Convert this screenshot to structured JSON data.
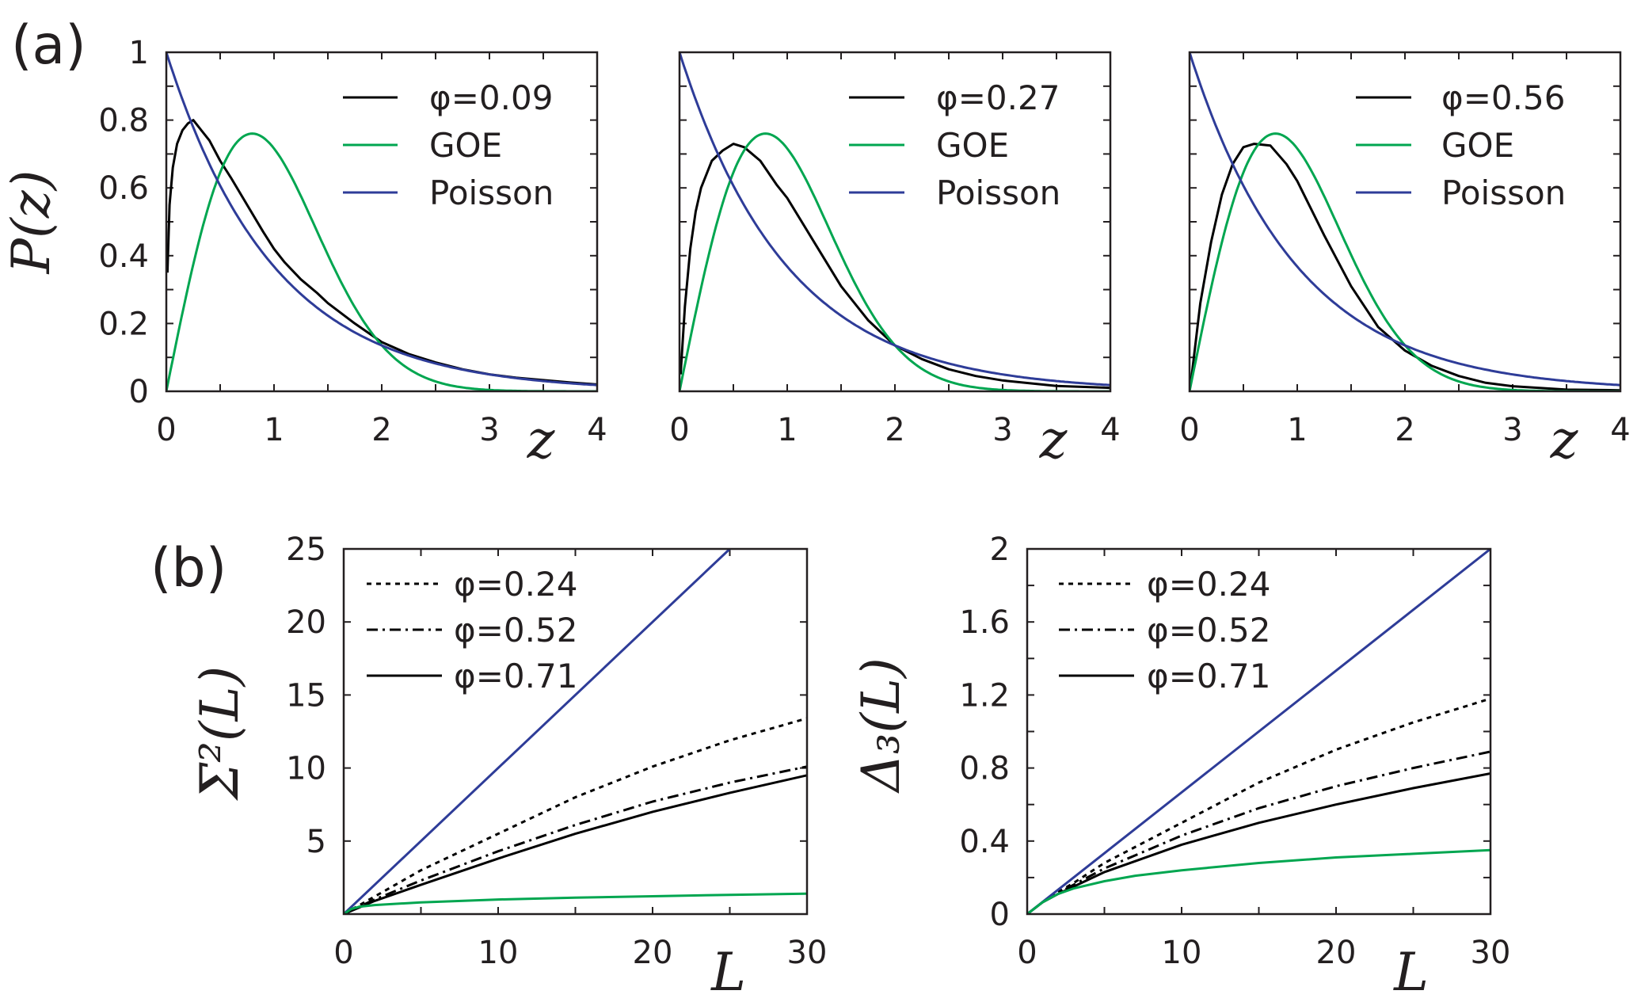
{
  "figure": {
    "panel_labels": {
      "a": "(a)",
      "b": "(b)"
    }
  },
  "colors": {
    "data": "#000000",
    "goe": "#00a650",
    "poisson": "#2e3c98",
    "axis": "#231f20"
  },
  "chart_data": [
    {
      "id": "a1",
      "type": "line",
      "title": "",
      "xlabel": "z",
      "ylabel": "P(z)",
      "xlim": [
        0,
        4
      ],
      "ylim": [
        0,
        1
      ],
      "xticks": [
        0,
        1,
        2,
        3,
        4
      ],
      "xtick_labels": [
        "0",
        "1",
        "2",
        "3",
        "4"
      ],
      "xminor": [
        0.5,
        1.5,
        2.5,
        3.5
      ],
      "yticks": [
        0,
        0.2,
        0.4,
        0.6,
        0.8,
        1
      ],
      "ytick_labels": [
        "0",
        "0.2",
        "0.4",
        "0.6",
        "0.8",
        "1"
      ],
      "yminor": [
        0.1,
        0.3,
        0.5,
        0.7,
        0.9
      ],
      "show_ytick_labels": true,
      "legend_position": "top-right",
      "series": [
        {
          "name": "φ=0.09",
          "style": "solid",
          "color_key": "data",
          "x": [
            0.01,
            0.03,
            0.06,
            0.1,
            0.15,
            0.2,
            0.25,
            0.3,
            0.4,
            0.5,
            0.6,
            0.75,
            0.9,
            1.0,
            1.1,
            1.25,
            1.4,
            1.5,
            1.75,
            2.0,
            2.25,
            2.5,
            2.75,
            3.0,
            3.25,
            3.5,
            3.75,
            4.0
          ],
          "y": [
            0.35,
            0.55,
            0.66,
            0.73,
            0.77,
            0.79,
            0.8,
            0.78,
            0.74,
            0.68,
            0.63,
            0.55,
            0.47,
            0.42,
            0.38,
            0.33,
            0.29,
            0.26,
            0.2,
            0.145,
            0.11,
            0.085,
            0.065,
            0.05,
            0.04,
            0.033,
            0.026,
            0.02
          ]
        },
        {
          "name": "GOE",
          "style": "solid",
          "color_key": "goe",
          "formula": "(pi/2) z exp(-pi z^2/4)"
        },
        {
          "name": "Poisson",
          "style": "solid",
          "color_key": "poisson",
          "formula": "exp(-z)"
        }
      ]
    },
    {
      "id": "a2",
      "type": "line",
      "title": "",
      "xlabel": "z",
      "ylabel": "",
      "xlim": [
        0,
        4
      ],
      "ylim": [
        0,
        1
      ],
      "xticks": [
        0,
        1,
        2,
        3,
        4
      ],
      "xtick_labels": [
        "0",
        "1",
        "2",
        "3",
        "4"
      ],
      "xminor": [
        0.5,
        1.5,
        2.5,
        3.5
      ],
      "yticks": [
        0,
        0.2,
        0.4,
        0.6,
        0.8,
        1
      ],
      "ytick_labels": [],
      "yminor": [
        0.1,
        0.3,
        0.5,
        0.7,
        0.9
      ],
      "show_ytick_labels": false,
      "legend_position": "top-right",
      "series": [
        {
          "name": "φ=0.27",
          "style": "solid",
          "color_key": "data",
          "x": [
            0.01,
            0.05,
            0.1,
            0.15,
            0.2,
            0.3,
            0.4,
            0.5,
            0.6,
            0.75,
            0.9,
            1.0,
            1.25,
            1.5,
            1.75,
            2.0,
            2.25,
            2.5,
            2.75,
            3.0,
            3.5,
            4.0
          ],
          "y": [
            0.05,
            0.25,
            0.42,
            0.53,
            0.6,
            0.68,
            0.71,
            0.73,
            0.72,
            0.68,
            0.61,
            0.57,
            0.44,
            0.31,
            0.21,
            0.135,
            0.095,
            0.065,
            0.045,
            0.032,
            0.016,
            0.01
          ]
        },
        {
          "name": "GOE",
          "style": "solid",
          "color_key": "goe",
          "formula": "(pi/2) z exp(-pi z^2/4)"
        },
        {
          "name": "Poisson",
          "style": "solid",
          "color_key": "poisson",
          "formula": "exp(-z)"
        }
      ]
    },
    {
      "id": "a3",
      "type": "line",
      "title": "",
      "xlabel": "z",
      "ylabel": "",
      "xlim": [
        0,
        4
      ],
      "ylim": [
        0,
        1
      ],
      "xticks": [
        0,
        1,
        2,
        3,
        4
      ],
      "xtick_labels": [
        "0",
        "1",
        "2",
        "3",
        "4"
      ],
      "xminor": [
        0.5,
        1.5,
        2.5,
        3.5
      ],
      "yticks": [
        0,
        0.2,
        0.4,
        0.6,
        0.8,
        1
      ],
      "ytick_labels": [],
      "yminor": [
        0.1,
        0.3,
        0.5,
        0.7,
        0.9
      ],
      "show_ytick_labels": false,
      "legend_position": "top-right",
      "series": [
        {
          "name": "φ=0.56",
          "style": "solid",
          "color_key": "data",
          "x": [
            0.01,
            0.1,
            0.2,
            0.3,
            0.4,
            0.5,
            0.6,
            0.75,
            0.9,
            1.0,
            1.25,
            1.5,
            1.75,
            2.0,
            2.25,
            2.5,
            2.75,
            3.0,
            3.5,
            4.0
          ],
          "y": [
            0.02,
            0.26,
            0.44,
            0.58,
            0.67,
            0.72,
            0.73,
            0.725,
            0.67,
            0.62,
            0.46,
            0.31,
            0.19,
            0.12,
            0.075,
            0.045,
            0.025,
            0.015,
            0.005,
            0.003
          ]
        },
        {
          "name": "GOE",
          "style": "solid",
          "color_key": "goe",
          "formula": "(pi/2) z exp(-pi z^2/4)"
        },
        {
          "name": "Poisson",
          "style": "solid",
          "color_key": "poisson",
          "formula": "exp(-z)"
        }
      ]
    },
    {
      "id": "b1",
      "type": "line",
      "title": "",
      "xlabel": "L",
      "ylabel": "Σ²(L)",
      "xlim": [
        0,
        30
      ],
      "ylim": [
        0,
        25
      ],
      "xticks": [
        0,
        10,
        20,
        30
      ],
      "xtick_labels": [
        "0",
        "10",
        "20",
        "30"
      ],
      "xminor": [
        5,
        15,
        25
      ],
      "yticks": [
        5,
        10,
        15,
        20,
        25
      ],
      "ytick_labels": [
        "5",
        "10",
        "15",
        "20",
        "25"
      ],
      "yminor": [],
      "show_ytick_labels": true,
      "legend_position": "top-left",
      "series": [
        {
          "name": "φ=0.24",
          "style": "dotted",
          "color_key": "data",
          "x": [
            0,
            1,
            2,
            5,
            10,
            15,
            20,
            25,
            30
          ],
          "y": [
            0,
            0.6,
            1.2,
            3.0,
            5.5,
            8.0,
            10.1,
            11.9,
            13.4
          ]
        },
        {
          "name": "φ=0.52",
          "style": "dashdot",
          "color_key": "data",
          "x": [
            0,
            1,
            2,
            5,
            10,
            15,
            20,
            25,
            30
          ],
          "y": [
            0,
            0.5,
            1.0,
            2.3,
            4.3,
            6.1,
            7.7,
            9.0,
            10.1
          ]
        },
        {
          "name": "φ=0.71",
          "style": "solid",
          "color_key": "data",
          "x": [
            0,
            1,
            2,
            5,
            10,
            15,
            20,
            25,
            30
          ],
          "y": [
            0,
            0.45,
            0.9,
            2.0,
            3.8,
            5.5,
            7.0,
            8.3,
            9.5
          ]
        },
        {
          "name": "Poisson",
          "style": "solid",
          "color_key": "poisson",
          "legend": false,
          "x": [
            0,
            25
          ],
          "y": [
            0,
            25
          ]
        },
        {
          "name": "GOE",
          "style": "solid",
          "color_key": "goe",
          "legend": false,
          "x": [
            0,
            0.5,
            1,
            2,
            5,
            10,
            15,
            20,
            25,
            30
          ],
          "y": [
            0,
            0.35,
            0.5,
            0.62,
            0.8,
            1.0,
            1.12,
            1.22,
            1.32,
            1.4
          ]
        }
      ]
    },
    {
      "id": "b2",
      "type": "line",
      "title": "",
      "xlabel": "L",
      "ylabel": "Δ₃(L)",
      "xlim": [
        0,
        30
      ],
      "ylim": [
        0,
        2
      ],
      "xticks": [
        0,
        10,
        20,
        30
      ],
      "xtick_labels": [
        "0",
        "10",
        "20",
        "30"
      ],
      "xminor": [
        5,
        15,
        25
      ],
      "yticks": [
        0,
        0.4,
        0.8,
        1.2,
        1.6,
        2
      ],
      "ytick_labels": [
        "0",
        "0.4",
        "0.8",
        "1.2",
        "1.6",
        "2"
      ],
      "yminor": [
        0.2,
        0.6,
        1.0,
        1.4,
        1.8
      ],
      "show_ytick_labels": true,
      "legend_position": "top-left",
      "series": [
        {
          "name": "φ=0.24",
          "style": "dotted",
          "color_key": "data",
          "x": [
            0,
            1,
            2,
            3,
            5,
            10,
            15,
            20,
            25,
            30
          ],
          "y": [
            0,
            0.065,
            0.12,
            0.17,
            0.28,
            0.5,
            0.72,
            0.9,
            1.05,
            1.18
          ]
        },
        {
          "name": "φ=0.52",
          "style": "dashdot",
          "color_key": "data",
          "x": [
            0,
            1,
            2,
            3,
            5,
            10,
            15,
            20,
            25,
            30
          ],
          "y": [
            0,
            0.065,
            0.115,
            0.16,
            0.25,
            0.43,
            0.58,
            0.7,
            0.8,
            0.89
          ]
        },
        {
          "name": "φ=0.71",
          "style": "solid",
          "color_key": "data",
          "x": [
            0,
            1,
            2,
            3,
            5,
            10,
            15,
            20,
            25,
            30
          ],
          "y": [
            0,
            0.065,
            0.11,
            0.15,
            0.23,
            0.38,
            0.5,
            0.6,
            0.69,
            0.77
          ]
        },
        {
          "name": "Poisson",
          "style": "solid",
          "color_key": "poisson",
          "legend": false,
          "x": [
            0,
            30
          ],
          "y": [
            0,
            2
          ]
        },
        {
          "name": "GOE",
          "style": "solid",
          "color_key": "goe",
          "legend": false,
          "x": [
            0,
            1,
            2,
            3,
            5,
            7,
            10,
            15,
            20,
            25,
            30
          ],
          "y": [
            0,
            0.065,
            0.11,
            0.14,
            0.18,
            0.21,
            0.24,
            0.28,
            0.31,
            0.33,
            0.35
          ]
        }
      ]
    }
  ]
}
